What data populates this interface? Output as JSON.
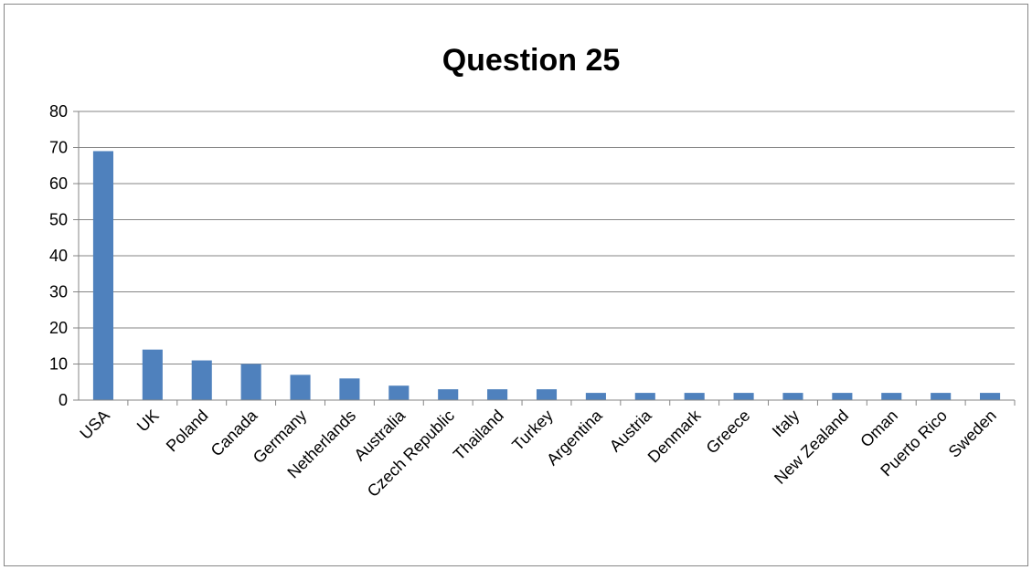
{
  "chart_data": {
    "type": "bar",
    "title": "Question 25",
    "xlabel": "",
    "ylabel": "",
    "categories": [
      "USA",
      "UK",
      "Poland",
      "Canada",
      "Germany",
      "Netherlands",
      "Australia",
      "Czech Republic",
      "Thailand",
      "Turkey",
      "Argentina",
      "Austria",
      "Denmark",
      "Greece",
      "Italy",
      "New Zealand",
      "Oman",
      "Puerto Rico",
      "Sweden"
    ],
    "values": [
      69,
      14,
      11,
      10,
      7,
      6,
      4,
      3,
      3,
      3,
      2,
      2,
      2,
      2,
      2,
      2,
      2,
      2,
      2
    ],
    "ylim": [
      0,
      80
    ],
    "yticks": [
      0,
      10,
      20,
      30,
      40,
      50,
      60,
      70,
      80
    ],
    "grid": true,
    "legend": "none",
    "bar_color": "#4F81BD",
    "gridline_color": "#868686"
  }
}
